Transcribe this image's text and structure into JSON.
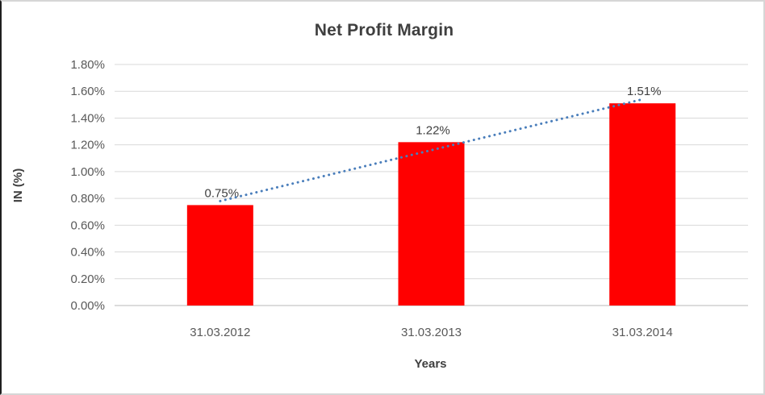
{
  "chart_data": {
    "type": "bar",
    "title": "Net Profit Margin",
    "xlabel": "Years",
    "ylabel": "IN (%)",
    "categories": [
      "31.03.2012",
      "31.03.2013",
      "31.03.2014"
    ],
    "values": [
      0.75,
      1.22,
      1.51
    ],
    "bar_labels": [
      "0.75%",
      "1.22%",
      "1.51%"
    ],
    "y_ticks": [
      {
        "value": 0.0,
        "label": "0.00%"
      },
      {
        "value": 0.2,
        "label": "0.20%"
      },
      {
        "value": 0.4,
        "label": "0.40%"
      },
      {
        "value": 0.6,
        "label": "0.60%"
      },
      {
        "value": 0.8,
        "label": "0.80%"
      },
      {
        "value": 1.0,
        "label": "1.00%"
      },
      {
        "value": 1.2,
        "label": "1.20%"
      },
      {
        "value": 1.4,
        "label": "1.40%"
      },
      {
        "value": 1.6,
        "label": "1.60%"
      },
      {
        "value": 1.8,
        "label": "1.80%"
      }
    ],
    "ylim": [
      0,
      1.8
    ],
    "grid": true,
    "legend": "none",
    "colors": {
      "bar": "#ff0000",
      "gridline": "#d9d9d9",
      "axis_line": "#c6c6c6",
      "trendline": "#4a7ebb",
      "title_text": "#3f3f3f",
      "tick_text": "#595959",
      "data_label_text": "#404040"
    },
    "trendline": {
      "style": "dotted",
      "color": "#4a7ebb"
    }
  }
}
